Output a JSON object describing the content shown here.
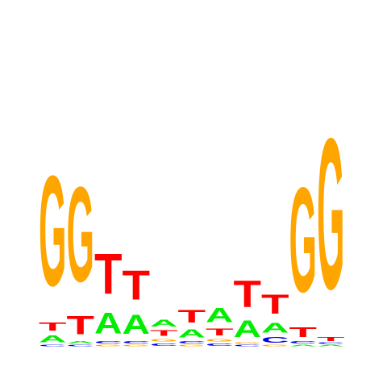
{
  "chart_data": {
    "type": "sequence-logo",
    "alphabet": [
      "A",
      "C",
      "G",
      "T"
    ],
    "colors": {
      "A": "#00ee00",
      "C": "#0000ee",
      "G": "#ffa500",
      "T": "#ff0000"
    },
    "ylim": [
      0,
      1.7
    ],
    "positions": [
      {
        "A": 0.05,
        "C": 0.01,
        "G": 0.79,
        "T": 0.06
      },
      {
        "A": 0.02,
        "C": 0.01,
        "G": 0.68,
        "T": 0.13
      },
      {
        "A": 0.15,
        "C": 0.02,
        "G": 0.01,
        "T": 0.29
      },
      {
        "A": 0.14,
        "C": 0.02,
        "G": 0.01,
        "T": 0.21
      },
      {
        "A": 0.05,
        "C": 0.02,
        "G": 0.02,
        "T": 0.04
      },
      {
        "A": 0.06,
        "C": 0.02,
        "G": 0.01,
        "T": 0.09
      },
      {
        "A": 0.1,
        "C": 0.02,
        "G": 0.02,
        "T": 0.05
      },
      {
        "A": 0.12,
        "C": 0.01,
        "G": 0.01,
        "T": 0.19
      },
      {
        "A": 0.07,
        "C": 0.04,
        "G": 0.01,
        "T": 0.14
      },
      {
        "A": 0.01,
        "C": 0.02,
        "G": 0.75,
        "T": 0.07
      },
      {
        "A": 0.01,
        "C": 0.01,
        "G": 1.08,
        "T": 0.03
      }
    ]
  }
}
